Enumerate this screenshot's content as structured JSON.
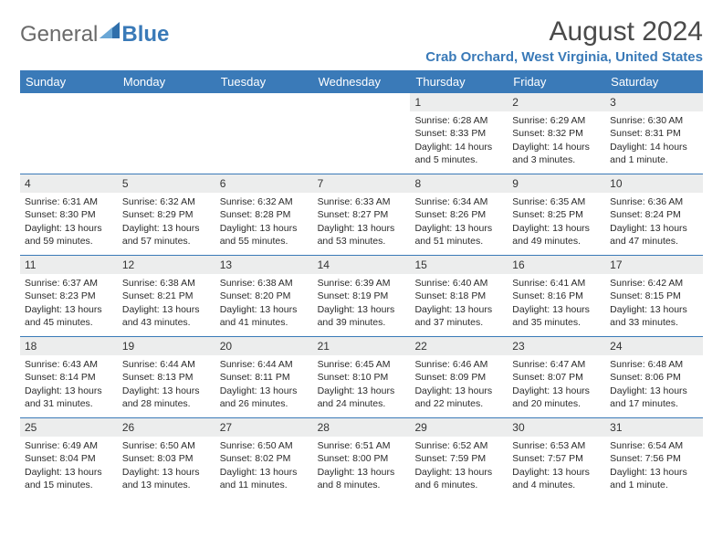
{
  "brand": {
    "text1": "General",
    "text2": "Blue",
    "accent_color": "#3a7ab8"
  },
  "title": "August 2024",
  "location": "Crab Orchard, West Virginia, United States",
  "header_bg": "#3a7ab8",
  "daynum_bg": "#eceded",
  "row_border": "#3a7ab8",
  "weekdays": [
    "Sunday",
    "Monday",
    "Tuesday",
    "Wednesday",
    "Thursday",
    "Friday",
    "Saturday"
  ],
  "weeks": [
    [
      null,
      null,
      null,
      null,
      {
        "n": "1",
        "sr": "Sunrise: 6:28 AM",
        "ss": "Sunset: 8:33 PM",
        "dl1": "Daylight: 14 hours",
        "dl2": "and 5 minutes."
      },
      {
        "n": "2",
        "sr": "Sunrise: 6:29 AM",
        "ss": "Sunset: 8:32 PM",
        "dl1": "Daylight: 14 hours",
        "dl2": "and 3 minutes."
      },
      {
        "n": "3",
        "sr": "Sunrise: 6:30 AM",
        "ss": "Sunset: 8:31 PM",
        "dl1": "Daylight: 14 hours",
        "dl2": "and 1 minute."
      }
    ],
    [
      {
        "n": "4",
        "sr": "Sunrise: 6:31 AM",
        "ss": "Sunset: 8:30 PM",
        "dl1": "Daylight: 13 hours",
        "dl2": "and 59 minutes."
      },
      {
        "n": "5",
        "sr": "Sunrise: 6:32 AM",
        "ss": "Sunset: 8:29 PM",
        "dl1": "Daylight: 13 hours",
        "dl2": "and 57 minutes."
      },
      {
        "n": "6",
        "sr": "Sunrise: 6:32 AM",
        "ss": "Sunset: 8:28 PM",
        "dl1": "Daylight: 13 hours",
        "dl2": "and 55 minutes."
      },
      {
        "n": "7",
        "sr": "Sunrise: 6:33 AM",
        "ss": "Sunset: 8:27 PM",
        "dl1": "Daylight: 13 hours",
        "dl2": "and 53 minutes."
      },
      {
        "n": "8",
        "sr": "Sunrise: 6:34 AM",
        "ss": "Sunset: 8:26 PM",
        "dl1": "Daylight: 13 hours",
        "dl2": "and 51 minutes."
      },
      {
        "n": "9",
        "sr": "Sunrise: 6:35 AM",
        "ss": "Sunset: 8:25 PM",
        "dl1": "Daylight: 13 hours",
        "dl2": "and 49 minutes."
      },
      {
        "n": "10",
        "sr": "Sunrise: 6:36 AM",
        "ss": "Sunset: 8:24 PM",
        "dl1": "Daylight: 13 hours",
        "dl2": "and 47 minutes."
      }
    ],
    [
      {
        "n": "11",
        "sr": "Sunrise: 6:37 AM",
        "ss": "Sunset: 8:23 PM",
        "dl1": "Daylight: 13 hours",
        "dl2": "and 45 minutes."
      },
      {
        "n": "12",
        "sr": "Sunrise: 6:38 AM",
        "ss": "Sunset: 8:21 PM",
        "dl1": "Daylight: 13 hours",
        "dl2": "and 43 minutes."
      },
      {
        "n": "13",
        "sr": "Sunrise: 6:38 AM",
        "ss": "Sunset: 8:20 PM",
        "dl1": "Daylight: 13 hours",
        "dl2": "and 41 minutes."
      },
      {
        "n": "14",
        "sr": "Sunrise: 6:39 AM",
        "ss": "Sunset: 8:19 PM",
        "dl1": "Daylight: 13 hours",
        "dl2": "and 39 minutes."
      },
      {
        "n": "15",
        "sr": "Sunrise: 6:40 AM",
        "ss": "Sunset: 8:18 PM",
        "dl1": "Daylight: 13 hours",
        "dl2": "and 37 minutes."
      },
      {
        "n": "16",
        "sr": "Sunrise: 6:41 AM",
        "ss": "Sunset: 8:16 PM",
        "dl1": "Daylight: 13 hours",
        "dl2": "and 35 minutes."
      },
      {
        "n": "17",
        "sr": "Sunrise: 6:42 AM",
        "ss": "Sunset: 8:15 PM",
        "dl1": "Daylight: 13 hours",
        "dl2": "and 33 minutes."
      }
    ],
    [
      {
        "n": "18",
        "sr": "Sunrise: 6:43 AM",
        "ss": "Sunset: 8:14 PM",
        "dl1": "Daylight: 13 hours",
        "dl2": "and 31 minutes."
      },
      {
        "n": "19",
        "sr": "Sunrise: 6:44 AM",
        "ss": "Sunset: 8:13 PM",
        "dl1": "Daylight: 13 hours",
        "dl2": "and 28 minutes."
      },
      {
        "n": "20",
        "sr": "Sunrise: 6:44 AM",
        "ss": "Sunset: 8:11 PM",
        "dl1": "Daylight: 13 hours",
        "dl2": "and 26 minutes."
      },
      {
        "n": "21",
        "sr": "Sunrise: 6:45 AM",
        "ss": "Sunset: 8:10 PM",
        "dl1": "Daylight: 13 hours",
        "dl2": "and 24 minutes."
      },
      {
        "n": "22",
        "sr": "Sunrise: 6:46 AM",
        "ss": "Sunset: 8:09 PM",
        "dl1": "Daylight: 13 hours",
        "dl2": "and 22 minutes."
      },
      {
        "n": "23",
        "sr": "Sunrise: 6:47 AM",
        "ss": "Sunset: 8:07 PM",
        "dl1": "Daylight: 13 hours",
        "dl2": "and 20 minutes."
      },
      {
        "n": "24",
        "sr": "Sunrise: 6:48 AM",
        "ss": "Sunset: 8:06 PM",
        "dl1": "Daylight: 13 hours",
        "dl2": "and 17 minutes."
      }
    ],
    [
      {
        "n": "25",
        "sr": "Sunrise: 6:49 AM",
        "ss": "Sunset: 8:04 PM",
        "dl1": "Daylight: 13 hours",
        "dl2": "and 15 minutes."
      },
      {
        "n": "26",
        "sr": "Sunrise: 6:50 AM",
        "ss": "Sunset: 8:03 PM",
        "dl1": "Daylight: 13 hours",
        "dl2": "and 13 minutes."
      },
      {
        "n": "27",
        "sr": "Sunrise: 6:50 AM",
        "ss": "Sunset: 8:02 PM",
        "dl1": "Daylight: 13 hours",
        "dl2": "and 11 minutes."
      },
      {
        "n": "28",
        "sr": "Sunrise: 6:51 AM",
        "ss": "Sunset: 8:00 PM",
        "dl1": "Daylight: 13 hours",
        "dl2": "and 8 minutes."
      },
      {
        "n": "29",
        "sr": "Sunrise: 6:52 AM",
        "ss": "Sunset: 7:59 PM",
        "dl1": "Daylight: 13 hours",
        "dl2": "and 6 minutes."
      },
      {
        "n": "30",
        "sr": "Sunrise: 6:53 AM",
        "ss": "Sunset: 7:57 PM",
        "dl1": "Daylight: 13 hours",
        "dl2": "and 4 minutes."
      },
      {
        "n": "31",
        "sr": "Sunrise: 6:54 AM",
        "ss": "Sunset: 7:56 PM",
        "dl1": "Daylight: 13 hours",
        "dl2": "and 1 minute."
      }
    ]
  ]
}
